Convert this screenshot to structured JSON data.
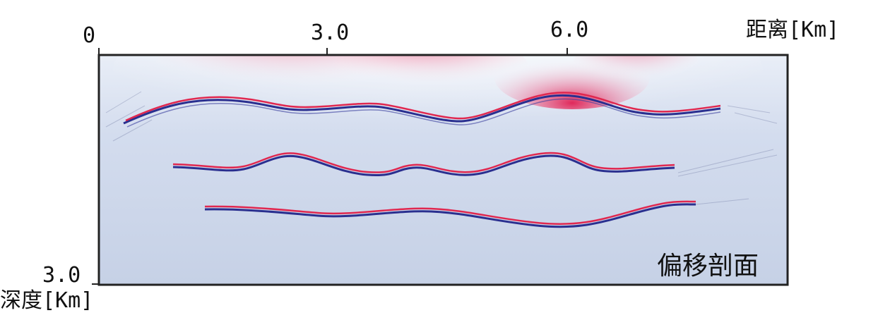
{
  "figure": {
    "x_axis": {
      "title": "距离[Km]",
      "ticks": [
        "0",
        "3.0",
        "6.0"
      ]
    },
    "y_axis": {
      "title": "深度[Km]",
      "ticks": [
        "3.0"
      ]
    },
    "caption": "偏移剖面"
  },
  "colors": {
    "background": "#c9d4e8",
    "reflector_red": "#e0274f",
    "reflector_blue": "#2a2f8f",
    "noise_red": "#e8386a",
    "frame": "#222222"
  }
}
